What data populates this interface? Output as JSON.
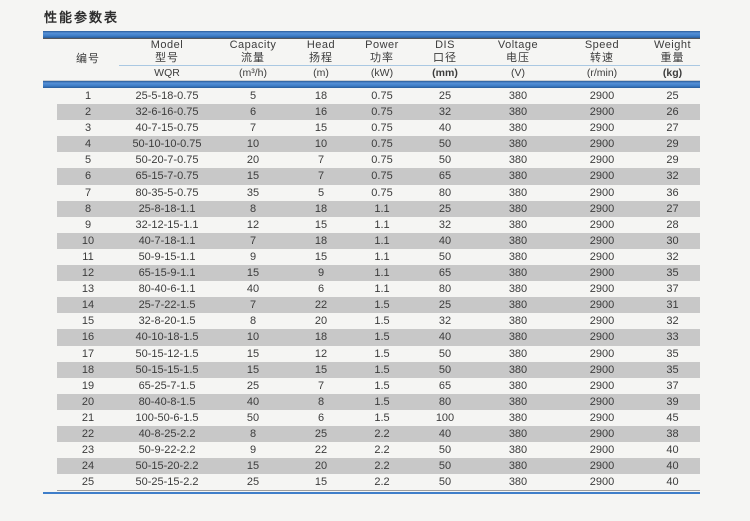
{
  "title": "性能参数表",
  "table": {
    "columns": [
      {
        "en": "",
        "zh": "编号",
        "unit": ""
      },
      {
        "en": "Model",
        "zh": "型号",
        "unit": "WQR"
      },
      {
        "en": "Capacity",
        "zh": "流量",
        "unit": "(m³/h)"
      },
      {
        "en": "Head",
        "zh": "扬程",
        "unit": "(m)"
      },
      {
        "en": "Power",
        "zh": "功率",
        "unit": "(kW)"
      },
      {
        "en": "DIS",
        "zh": "口径",
        "unit": "(mm)"
      },
      {
        "en": "Voltage",
        "zh": "电压",
        "unit": "(V)"
      },
      {
        "en": "Speed",
        "zh": "转速",
        "unit": "(r/min)"
      },
      {
        "en": "Weight",
        "zh": "重量",
        "unit": "(kg)"
      }
    ],
    "rows": [
      [
        "1",
        "25-5-18-0.75",
        "5",
        "18",
        "0.75",
        "25",
        "380",
        "2900",
        "25"
      ],
      [
        "2",
        "32-6-16-0.75",
        "6",
        "16",
        "0.75",
        "32",
        "380",
        "2900",
        "26"
      ],
      [
        "3",
        "40-7-15-0.75",
        "7",
        "15",
        "0.75",
        "40",
        "380",
        "2900",
        "27"
      ],
      [
        "4",
        "50-10-10-0.75",
        "10",
        "10",
        "0.75",
        "50",
        "380",
        "2900",
        "29"
      ],
      [
        "5",
        "50-20-7-0.75",
        "20",
        "7",
        "0.75",
        "50",
        "380",
        "2900",
        "29"
      ],
      [
        "6",
        "65-15-7-0.75",
        "15",
        "7",
        "0.75",
        "65",
        "380",
        "2900",
        "32"
      ],
      [
        "7",
        "80-35-5-0.75",
        "35",
        "5",
        "0.75",
        "80",
        "380",
        "2900",
        "36"
      ],
      [
        "8",
        "25-8-18-1.1",
        "8",
        "18",
        "1.1",
        "25",
        "380",
        "2900",
        "27"
      ],
      [
        "9",
        "32-12-15-1.1",
        "12",
        "15",
        "1.1",
        "32",
        "380",
        "2900",
        "28"
      ],
      [
        "10",
        "40-7-18-1.1",
        "7",
        "18",
        "1.1",
        "40",
        "380",
        "2900",
        "30"
      ],
      [
        "11",
        "50-9-15-1.1",
        "9",
        "15",
        "1.1",
        "50",
        "380",
        "2900",
        "32"
      ],
      [
        "12",
        "65-15-9-1.1",
        "15",
        "9",
        "1.1",
        "65",
        "380",
        "2900",
        "35"
      ],
      [
        "13",
        "80-40-6-1.1",
        "40",
        "6",
        "1.1",
        "80",
        "380",
        "2900",
        "37"
      ],
      [
        "14",
        "25-7-22-1.5",
        "7",
        "22",
        "1.5",
        "25",
        "380",
        "2900",
        "31"
      ],
      [
        "15",
        "32-8-20-1.5",
        "8",
        "20",
        "1.5",
        "32",
        "380",
        "2900",
        "32"
      ],
      [
        "16",
        "40-10-18-1.5",
        "10",
        "18",
        "1.5",
        "40",
        "380",
        "2900",
        "33"
      ],
      [
        "17",
        "50-15-12-1.5",
        "15",
        "12",
        "1.5",
        "50",
        "380",
        "2900",
        "35"
      ],
      [
        "18",
        "50-15-15-1.5",
        "15",
        "15",
        "1.5",
        "50",
        "380",
        "2900",
        "35"
      ],
      [
        "19",
        "65-25-7-1.5",
        "25",
        "7",
        "1.5",
        "65",
        "380",
        "2900",
        "37"
      ],
      [
        "20",
        "80-40-8-1.5",
        "40",
        "8",
        "1.5",
        "80",
        "380",
        "2900",
        "39"
      ],
      [
        "21",
        "100-50-6-1.5",
        "50",
        "6",
        "1.5",
        "100",
        "380",
        "2900",
        "45"
      ],
      [
        "22",
        "40-8-25-2.2",
        "8",
        "25",
        "2.2",
        "40",
        "380",
        "2900",
        "38"
      ],
      [
        "23",
        "50-9-22-2.2",
        "9",
        "22",
        "2.2",
        "50",
        "380",
        "2900",
        "40"
      ],
      [
        "24",
        "50-15-20-2.2",
        "15",
        "20",
        "2.2",
        "50",
        "380",
        "2900",
        "40"
      ],
      [
        "25",
        "50-25-15-2.2",
        "25",
        "15",
        "2.2",
        "50",
        "380",
        "2900",
        "40"
      ]
    ]
  },
  "colors": {
    "accent_blue": "#3d7cc6",
    "stripe_gray": "#c8c8c8",
    "page_background": "#f5f5f3",
    "header_divider_blue": "#aac8e2"
  }
}
